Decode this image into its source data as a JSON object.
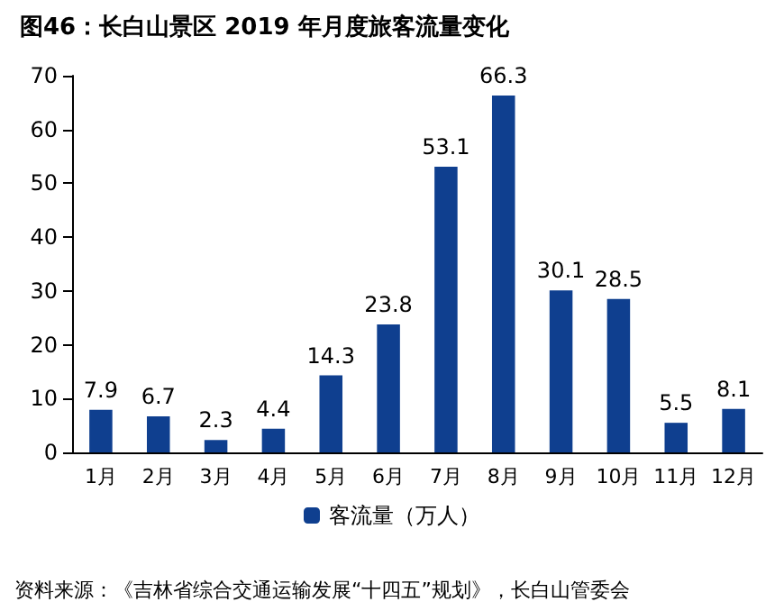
{
  "chart_data": {
    "type": "bar",
    "title": "图46：长白山景区 2019 年月度旅客流量变化",
    "categories": [
      "1月",
      "2月",
      "3月",
      "4月",
      "5月",
      "6月",
      "7月",
      "8月",
      "9月",
      "10月",
      "11月",
      "12月"
    ],
    "series": [
      {
        "name": "客流量（万人）",
        "color": "#0f3f8f",
        "values": [
          7.9,
          6.7,
          2.3,
          4.4,
          14.3,
          23.8,
          53.1,
          66.3,
          30.1,
          28.5,
          5.5,
          8.1
        ]
      }
    ],
    "ylim": [
      0,
      70
    ],
    "yticks": [
      0,
      10,
      20,
      30,
      40,
      50,
      60,
      70
    ],
    "data_labels": true,
    "grid": false,
    "legend": "bottom",
    "annotations": [
      "资料来源：《吉林省综合交通运输发展“十四五”规划》，长白山管委会"
    ]
  }
}
